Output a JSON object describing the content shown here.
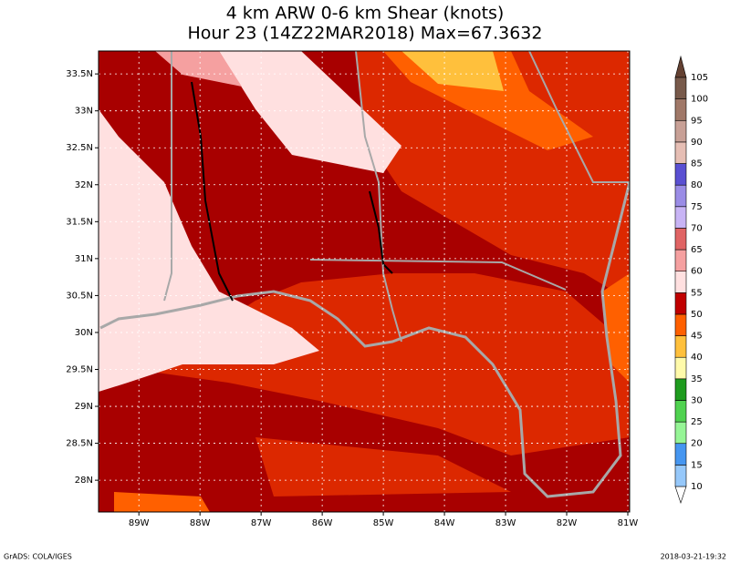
{
  "title": {
    "line1": "4 km ARW 0-6 km Shear (knots)",
    "line2": "Hour 23 (14Z22MAR2018) Max=67.3632"
  },
  "map": {
    "xlim": [
      -89.66,
      -80.97
    ],
    "ylim": [
      27.57,
      33.81
    ],
    "lat_ticks": [
      {
        "value": 33.5,
        "label": "33.5N"
      },
      {
        "value": 33,
        "label": "33N"
      },
      {
        "value": 32.5,
        "label": "32.5N"
      },
      {
        "value": 32,
        "label": "32N"
      },
      {
        "value": 31.5,
        "label": "31.5N"
      },
      {
        "value": 31,
        "label": "31N"
      },
      {
        "value": 30.5,
        "label": "30.5N"
      },
      {
        "value": 30,
        "label": "30N"
      },
      {
        "value": 29.5,
        "label": "29.5N"
      },
      {
        "value": 29,
        "label": "29N"
      },
      {
        "value": 28.5,
        "label": "28.5N"
      },
      {
        "value": 28,
        "label": "28N"
      }
    ],
    "lon_ticks": [
      {
        "value": -89,
        "label": "89W"
      },
      {
        "value": -88,
        "label": "88W"
      },
      {
        "value": -87,
        "label": "87W"
      },
      {
        "value": -86,
        "label": "86W"
      },
      {
        "value": -85,
        "label": "85W"
      },
      {
        "value": -84,
        "label": "84W"
      },
      {
        "value": -83,
        "label": "83W"
      },
      {
        "value": -82,
        "label": "82W"
      },
      {
        "value": -81,
        "label": "81W"
      }
    ]
  },
  "colorbar": {
    "levels": [
      10,
      15,
      20,
      25,
      30,
      35,
      40,
      45,
      50,
      55,
      60,
      65,
      70,
      75,
      80,
      85,
      90,
      95,
      100,
      105
    ],
    "colors": [
      "#ffffff",
      "#96c8fa",
      "#4696f0",
      "#96f596",
      "#50d250",
      "#1e9b1e",
      "#fffaaa",
      "#ffc03c",
      "#ff6000",
      "#c00000",
      "#ffe0e0",
      "#f5a0a0",
      "#e06464",
      "#c8b4f5",
      "#9a8ce6",
      "#5a50d2",
      "#e6beb4",
      "#c8a096",
      "#a07868",
      "#785a4b",
      "#644132"
    ]
  },
  "footer": {
    "left": "GrADS: COLA/IGES",
    "right": "2018-03-21-19:32"
  }
}
